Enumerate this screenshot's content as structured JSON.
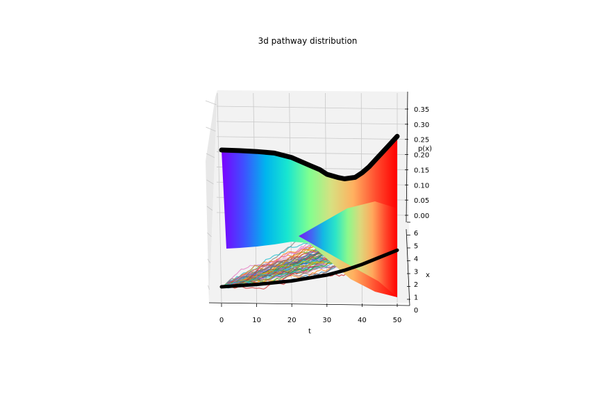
{
  "chart_data": {
    "type": "3d-surface",
    "title": "3d pathway distribution",
    "xlabel": "t",
    "ylabel": "x",
    "zlabel": "p(x)",
    "t_ticks": [
      "0",
      "10",
      "20",
      "30",
      "40",
      "50"
    ],
    "x_ticks": [
      "0",
      "1",
      "2",
      "3",
      "4",
      "5",
      "6"
    ],
    "z_ticks": [
      "0.00",
      "0.05",
      "0.10",
      "0.15",
      "0.20",
      "0.25",
      "0.30",
      "0.35"
    ],
    "t_range": [
      0,
      50
    ],
    "x_range": [
      0,
      6
    ],
    "z_range": [
      0,
      0.38
    ],
    "grid": true,
    "colormap": "rainbow",
    "peak_curve": {
      "t": [
        0,
        5,
        10,
        15,
        20,
        25,
        28,
        30,
        33,
        35,
        38,
        40,
        42,
        44,
        46,
        48,
        50
      ],
      "p": [
        0.215,
        0.213,
        0.21,
        0.205,
        0.19,
        0.165,
        0.15,
        0.135,
        0.125,
        0.12,
        0.125,
        0.14,
        0.16,
        0.185,
        0.21,
        0.235,
        0.26
      ]
    },
    "mean_path": {
      "t": [
        0,
        10,
        20,
        30,
        35,
        40,
        45,
        50
      ],
      "x": [
        0.5,
        0.7,
        1.0,
        1.5,
        1.9,
        2.4,
        3.0,
        3.6
      ]
    },
    "paths_count_shown": 60
  }
}
